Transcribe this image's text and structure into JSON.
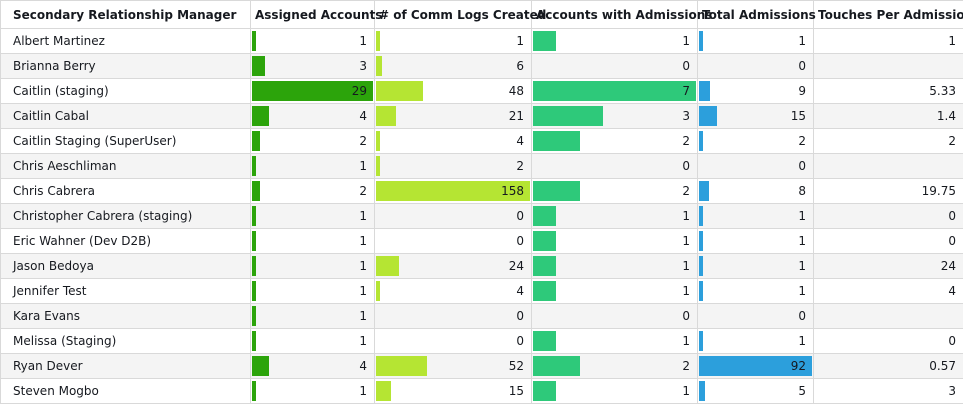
{
  "columns": [
    "Secondary Relationship Manager",
    "Assigned Accounts",
    "# of Comm Logs Created",
    "Accounts with Admissions",
    "Total Admissions",
    "Touches Per Admission"
  ],
  "bar_colors": [
    "#2ca40b",
    "#b5e533",
    "#2ec97a",
    "#2c9fdc"
  ],
  "bar_max": [
    29,
    158,
    7,
    92
  ],
  "rows": [
    {
      "name": "Albert Martinez",
      "assigned": "1",
      "comm": "1",
      "acct_adm": "1",
      "total_adm": "1",
      "touches": "1"
    },
    {
      "name": "Brianna Berry",
      "assigned": "3",
      "comm": "6",
      "acct_adm": "0",
      "total_adm": "0",
      "touches": ""
    },
    {
      "name": "Caitlin (staging)",
      "assigned": "29",
      "comm": "48",
      "acct_adm": "7",
      "total_adm": "9",
      "touches": "5.33"
    },
    {
      "name": "Caitlin Cabal",
      "assigned": "4",
      "comm": "21",
      "acct_adm": "3",
      "total_adm": "15",
      "touches": "1.4"
    },
    {
      "name": "Caitlin Staging (SuperUser)",
      "assigned": "2",
      "comm": "4",
      "acct_adm": "2",
      "total_adm": "2",
      "touches": "2"
    },
    {
      "name": "Chris Aeschliman",
      "assigned": "1",
      "comm": "2",
      "acct_adm": "0",
      "total_adm": "0",
      "touches": ""
    },
    {
      "name": "Chris Cabrera",
      "assigned": "2",
      "comm": "158",
      "acct_adm": "2",
      "total_adm": "8",
      "touches": "19.75"
    },
    {
      "name": "Christopher Cabrera (staging)",
      "assigned": "1",
      "comm": "0",
      "acct_adm": "1",
      "total_adm": "1",
      "touches": "0"
    },
    {
      "name": "Eric Wahner (Dev D2B)",
      "assigned": "1",
      "comm": "0",
      "acct_adm": "1",
      "total_adm": "1",
      "touches": "0"
    },
    {
      "name": "Jason Bedoya",
      "assigned": "1",
      "comm": "24",
      "acct_adm": "1",
      "total_adm": "1",
      "touches": "24"
    },
    {
      "name": "Jennifer Test",
      "assigned": "1",
      "comm": "4",
      "acct_adm": "1",
      "total_adm": "1",
      "touches": "4"
    },
    {
      "name": "Kara Evans",
      "assigned": "1",
      "comm": "0",
      "acct_adm": "0",
      "total_adm": "0",
      "touches": ""
    },
    {
      "name": "Melissa (Staging)",
      "assigned": "1",
      "comm": "0",
      "acct_adm": "1",
      "total_adm": "1",
      "touches": "0"
    },
    {
      "name": "Ryan Dever",
      "assigned": "4",
      "comm": "52",
      "acct_adm": "2",
      "total_adm": "92",
      "touches": "0.57"
    },
    {
      "name": "Steven Mogbo",
      "assigned": "1",
      "comm": "15",
      "acct_adm": "1",
      "total_adm": "5",
      "touches": "3"
    }
  ]
}
